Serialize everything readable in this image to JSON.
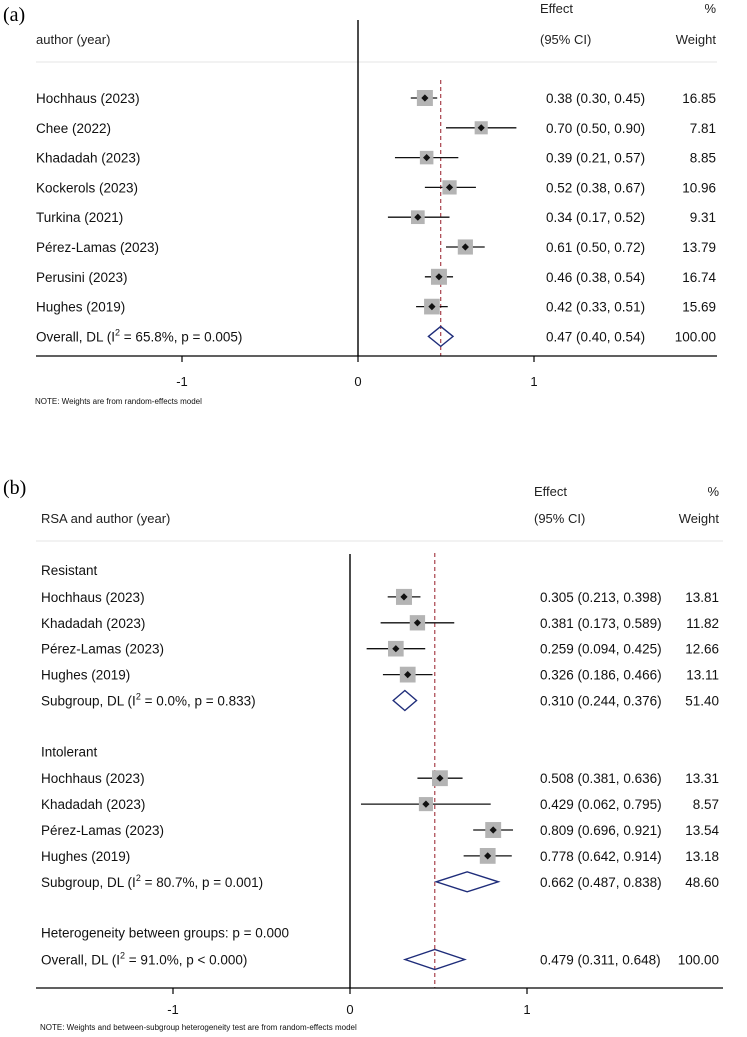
{
  "chart_data": [
    {
      "type": "forest",
      "panel_label": "(a)",
      "header": {
        "study_col": "author (year)",
        "effect_line1": "Effect",
        "effect_line2": "(95% CI)",
        "weight_line1": "%",
        "weight_line2": "Weight"
      },
      "xlim": [
        -2.0,
        2.0
      ],
      "ticks": [
        {
          "value": -1,
          "label": "-1"
        },
        {
          "value": 0,
          "label": "0"
        },
        {
          "value": 1,
          "label": "1"
        }
      ],
      "reference_line": 0.47,
      "note": "NOTE: Weights are from random-effects model",
      "rows": [
        {
          "kind": "study",
          "label": "Hochhaus (2023)",
          "est": 0.38,
          "lo": 0.3,
          "hi": 0.45,
          "effect_text": "0.38 (0.30, 0.45)",
          "weight": 16.85,
          "weight_text": "16.85"
        },
        {
          "kind": "study",
          "label": "Chee (2022)",
          "est": 0.7,
          "lo": 0.5,
          "hi": 0.9,
          "effect_text": "0.70 (0.50, 0.90)",
          "weight": 7.81,
          "weight_text": "7.81"
        },
        {
          "kind": "study",
          "label": "Khadadah (2023)",
          "est": 0.39,
          "lo": 0.21,
          "hi": 0.57,
          "effect_text": "0.39 (0.21, 0.57)",
          "weight": 8.85,
          "weight_text": "8.85"
        },
        {
          "kind": "study",
          "label": "Kockerols (2023)",
          "est": 0.52,
          "lo": 0.38,
          "hi": 0.67,
          "effect_text": "0.52 (0.38, 0.67)",
          "weight": 10.96,
          "weight_text": "10.96"
        },
        {
          "kind": "study",
          "label": "Turkina (2021)",
          "est": 0.34,
          "lo": 0.17,
          "hi": 0.52,
          "effect_text": "0.34 (0.17, 0.52)",
          "weight": 9.31,
          "weight_text": "9.31"
        },
        {
          "kind": "study",
          "label": "Pérez-Lamas (2023)",
          "est": 0.61,
          "lo": 0.5,
          "hi": 0.72,
          "effect_text": "0.61 (0.50, 0.72)",
          "weight": 13.79,
          "weight_text": "13.79"
        },
        {
          "kind": "study",
          "label": "Perusini (2023)",
          "est": 0.46,
          "lo": 0.38,
          "hi": 0.54,
          "effect_text": "0.46 (0.38, 0.54)",
          "weight": 16.74,
          "weight_text": "16.74"
        },
        {
          "kind": "study",
          "label": "Hughes (2019)",
          "est": 0.42,
          "lo": 0.33,
          "hi": 0.51,
          "effect_text": "0.42 (0.33, 0.51)",
          "weight": 15.69,
          "weight_text": "15.69"
        },
        {
          "kind": "overall",
          "label_pre": "Overall, DL (I",
          "label_sup": "2",
          "label_post": " = 65.8%, p = 0.005)",
          "est": 0.47,
          "lo": 0.4,
          "hi": 0.54,
          "effect_text": "0.47 (0.40, 0.54)",
          "weight_text": "100.00"
        }
      ]
    },
    {
      "type": "forest",
      "panel_label": "(b)",
      "header": {
        "study_col": "RSA and author (year)",
        "effect_line1": "Effect",
        "effect_line2": "(95% CI)",
        "weight_line1": "%",
        "weight_line2": "Weight"
      },
      "xlim": [
        -2.0,
        2.0
      ],
      "ticks": [
        {
          "value": -1,
          "label": "-1"
        },
        {
          "value": 0,
          "label": "0"
        },
        {
          "value": 1,
          "label": "1"
        }
      ],
      "reference_line": 0.479,
      "note": "NOTE: Weights and between-subgroup heterogeneity test are from random-effects model",
      "rows": [
        {
          "kind": "group",
          "label": "Resistant"
        },
        {
          "kind": "study",
          "label": "Hochhaus (2023)",
          "est": 0.305,
          "lo": 0.213,
          "hi": 0.398,
          "effect_text": "0.305 (0.213, 0.398)",
          "weight": 13.81,
          "weight_text": "13.81"
        },
        {
          "kind": "study",
          "label": "Khadadah (2023)",
          "est": 0.381,
          "lo": 0.173,
          "hi": 0.589,
          "effect_text": "0.381 (0.173, 0.589)",
          "weight": 11.82,
          "weight_text": "11.82"
        },
        {
          "kind": "study",
          "label": "Pérez-Lamas (2023)",
          "est": 0.259,
          "lo": 0.094,
          "hi": 0.425,
          "effect_text": "0.259 (0.094, 0.425)",
          "weight": 12.66,
          "weight_text": "12.66"
        },
        {
          "kind": "study",
          "label": "Hughes (2019)",
          "est": 0.326,
          "lo": 0.186,
          "hi": 0.466,
          "effect_text": "0.326 (0.186, 0.466)",
          "weight": 13.11,
          "weight_text": "13.11"
        },
        {
          "kind": "subgroup",
          "label_pre": "Subgroup, DL (I",
          "label_sup": "2",
          "label_post": " = 0.0%, p = 0.833)",
          "est": 0.31,
          "lo": 0.244,
          "hi": 0.376,
          "effect_text": "0.310 (0.244, 0.376)",
          "weight_text": "51.40"
        },
        {
          "kind": "blank"
        },
        {
          "kind": "group",
          "label": "Intolerant"
        },
        {
          "kind": "study",
          "label": "Hochhaus (2023)",
          "est": 0.508,
          "lo": 0.381,
          "hi": 0.636,
          "effect_text": "0.508 (0.381, 0.636)",
          "weight": 13.31,
          "weight_text": "13.31"
        },
        {
          "kind": "study",
          "label": "Khadadah (2023)",
          "est": 0.429,
          "lo": 0.062,
          "hi": 0.795,
          "effect_text": "0.429 (0.062, 0.795)",
          "weight": 8.57,
          "weight_text": "8.57"
        },
        {
          "kind": "study",
          "label": "Pérez-Lamas (2023)",
          "est": 0.809,
          "lo": 0.696,
          "hi": 0.921,
          "effect_text": "0.809 (0.696, 0.921)",
          "weight": 13.54,
          "weight_text": "13.54"
        },
        {
          "kind": "study",
          "label": "Hughes (2019)",
          "est": 0.778,
          "lo": 0.642,
          "hi": 0.914,
          "effect_text": "0.778 (0.642, 0.914)",
          "weight": 13.18,
          "weight_text": "13.18"
        },
        {
          "kind": "subgroup",
          "label_pre": "Subgroup, DL (I",
          "label_sup": "2",
          "label_post": " = 80.7%, p = 0.001)",
          "est": 0.662,
          "lo": 0.487,
          "hi": 0.838,
          "effect_text": "0.662 (0.487, 0.838)",
          "weight_text": "48.60"
        },
        {
          "kind": "blank"
        },
        {
          "kind": "text",
          "label": "Heterogeneity between groups: p = 0.000"
        },
        {
          "kind": "overall",
          "label_pre": "Overall, DL (I",
          "label_sup": "2",
          "label_post": " = 91.0%, p < 0.000)",
          "est": 0.479,
          "lo": 0.311,
          "hi": 0.648,
          "effect_text": "0.479 (0.311, 0.648)",
          "weight_text": "100.00"
        }
      ]
    }
  ],
  "colors": {
    "text": "#111111",
    "axis": "#000000",
    "diamond": "#1f2d7a",
    "reference_line": "#a0303a",
    "weight_box": "#b4b4b4",
    "point": "#111111"
  }
}
